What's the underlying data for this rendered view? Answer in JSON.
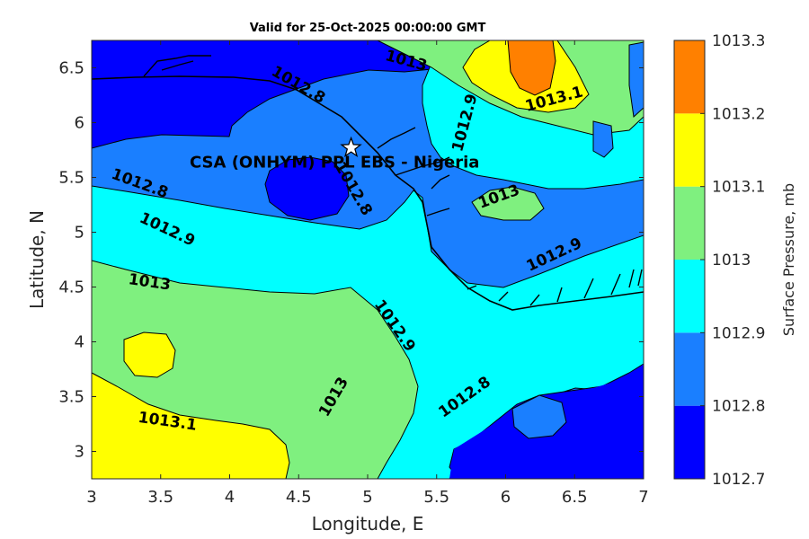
{
  "title": "Valid for 25-Oct-2025 00:00:00 GMT",
  "chart_data": {
    "type": "contour",
    "xlabel": "Longitude, E",
    "ylabel": "Latitude, N",
    "xlim": [
      3,
      7
    ],
    "ylim": [
      2.75,
      6.75
    ],
    "xticks": [
      3,
      3.5,
      4,
      4.5,
      5,
      5.5,
      6,
      6.5,
      7
    ],
    "xtick_labels": [
      "3",
      "3.5",
      "4",
      "4.5",
      "5",
      "5.5",
      "6",
      "6.5",
      "7"
    ],
    "yticks": [
      3,
      3.5,
      4,
      4.5,
      5,
      5.5,
      6,
      6.5
    ],
    "ytick_labels": [
      "3",
      "3.5",
      "4",
      "4.5",
      "5",
      "5.5",
      "6",
      "6.5"
    ],
    "colorbar": {
      "label": "Surface Pressure, mb",
      "levels": [
        1012.7,
        1012.8,
        1012.9,
        1013,
        1013.1,
        1013.2,
        1013.3
      ],
      "tick_labels": [
        "1012.7",
        "1012.8",
        "1012.9",
        "1013",
        "1013.1",
        "1013.2",
        "1013.3"
      ],
      "colors": [
        "#0000ff",
        "#1a7fff",
        "#00ffff",
        "#7ff07f",
        "#ffff00",
        "#ff8000",
        "#ff0000"
      ]
    },
    "contour_labels": [
      {
        "text": "1012.8",
        "lon": 3.35,
        "lat": 5.45,
        "angle": 20
      },
      {
        "text": "1012.8",
        "lon": 4.5,
        "lat": 6.35,
        "angle": 30
      },
      {
        "text": "1012.8",
        "lon": 4.9,
        "lat": 5.4,
        "angle": 60
      },
      {
        "text": "1012.8",
        "lon": 5.7,
        "lat": 3.5,
        "angle": -35
      },
      {
        "text": "1012.9",
        "lon": 3.55,
        "lat": 5.03,
        "angle": 25
      },
      {
        "text": "1012.9",
        "lon": 5.7,
        "lat": 6.0,
        "angle": -75
      },
      {
        "text": "1012.9",
        "lon": 6.35,
        "lat": 4.8,
        "angle": -25
      },
      {
        "text": "1012.9",
        "lon": 5.2,
        "lat": 4.15,
        "angle": 55
      },
      {
        "text": "1013",
        "lon": 3.42,
        "lat": 4.55,
        "angle": 8
      },
      {
        "text": "1013",
        "lon": 5.28,
        "lat": 6.57,
        "angle": 15
      },
      {
        "text": "1013",
        "lon": 5.95,
        "lat": 5.33,
        "angle": -20
      },
      {
        "text": "1013",
        "lon": 4.75,
        "lat": 3.5,
        "angle": -60
      },
      {
        "text": "1013.1",
        "lon": 3.55,
        "lat": 3.28,
        "angle": 8
      },
      {
        "text": "1013.1",
        "lon": 6.35,
        "lat": 6.22,
        "angle": -15
      }
    ],
    "station": {
      "label": "CSA (ONHYM) PPL EBS - Nigeria",
      "lon": 4.88,
      "lat": 5.77
    }
  }
}
